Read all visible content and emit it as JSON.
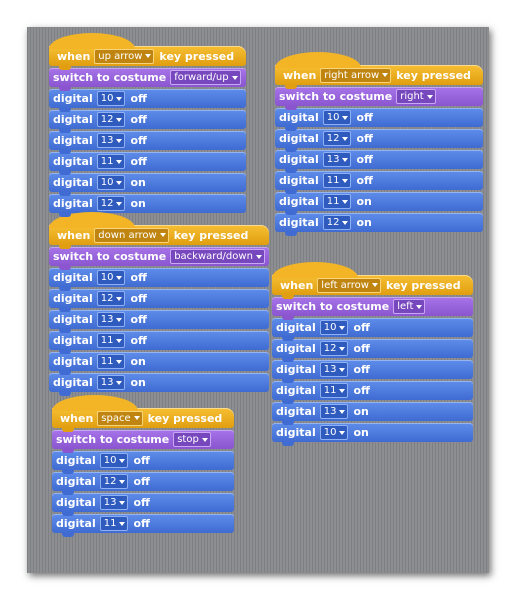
{
  "labels": {
    "when": "when",
    "key_pressed": "key pressed",
    "switch_to_costume": "switch to costume",
    "digital": "digital"
  },
  "colors": {
    "events": "#e6a822",
    "looks": "#9966e0",
    "motion": "#4a78dd",
    "stage": "#8a8b8e"
  },
  "icons": {
    "dropdown": "dropdown-arrow-icon"
  },
  "scripts": [
    {
      "key": "up arrow",
      "costume": "forward/up",
      "digital": [
        {
          "pin": "10",
          "state": "off"
        },
        {
          "pin": "12",
          "state": "off"
        },
        {
          "pin": "13",
          "state": "off"
        },
        {
          "pin": "11",
          "state": "off"
        },
        {
          "pin": "10",
          "state": "on"
        },
        {
          "pin": "12",
          "state": "on"
        }
      ]
    },
    {
      "key": "right arrow",
      "costume": "right",
      "digital": [
        {
          "pin": "10",
          "state": "off"
        },
        {
          "pin": "12",
          "state": "off"
        },
        {
          "pin": "13",
          "state": "off"
        },
        {
          "pin": "11",
          "state": "off"
        },
        {
          "pin": "11",
          "state": "on"
        },
        {
          "pin": "12",
          "state": "on"
        }
      ]
    },
    {
      "key": "down arrow",
      "costume": "backward/down",
      "digital": [
        {
          "pin": "10",
          "state": "off"
        },
        {
          "pin": "12",
          "state": "off"
        },
        {
          "pin": "13",
          "state": "off"
        },
        {
          "pin": "11",
          "state": "off"
        },
        {
          "pin": "11",
          "state": "on"
        },
        {
          "pin": "13",
          "state": "on"
        }
      ]
    },
    {
      "key": "left arrow",
      "costume": "left",
      "digital": [
        {
          "pin": "10",
          "state": "off"
        },
        {
          "pin": "12",
          "state": "off"
        },
        {
          "pin": "13",
          "state": "off"
        },
        {
          "pin": "11",
          "state": "off"
        },
        {
          "pin": "13",
          "state": "on"
        },
        {
          "pin": "10",
          "state": "on"
        }
      ]
    },
    {
      "key": "space",
      "costume": "stop",
      "digital": [
        {
          "pin": "10",
          "state": "off"
        },
        {
          "pin": "12",
          "state": "off"
        },
        {
          "pin": "13",
          "state": "off"
        },
        {
          "pin": "11",
          "state": "off"
        }
      ]
    }
  ]
}
